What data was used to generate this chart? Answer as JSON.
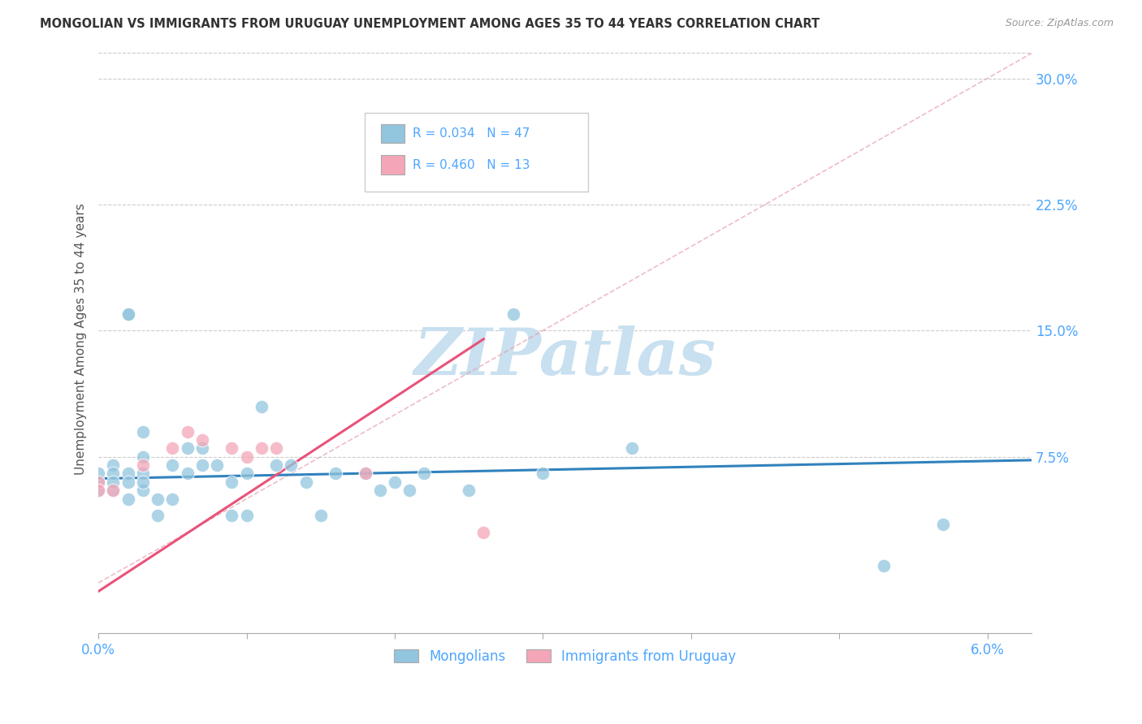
{
  "title": "MONGOLIAN VS IMMIGRANTS FROM URUGUAY UNEMPLOYMENT AMONG AGES 35 TO 44 YEARS CORRELATION CHART",
  "source": "Source: ZipAtlas.com",
  "ylabel": "Unemployment Among Ages 35 to 44 years",
  "xlim": [
    0.0,
    0.063
  ],
  "ylim": [
    -0.03,
    0.32
  ],
  "yticks": [
    0.075,
    0.15,
    0.225,
    0.3
  ],
  "xticks": [
    0.0,
    0.01,
    0.02,
    0.03,
    0.04,
    0.05,
    0.06
  ],
  "xtick_labels": [
    "0.0%",
    "",
    "",
    "",
    "",
    "",
    "6.0%"
  ],
  "ytick_labels": [
    "7.5%",
    "15.0%",
    "22.5%",
    "30.0%"
  ],
  "legend_label_blue": "Mongolians",
  "legend_label_pink": "Immigrants from Uruguay",
  "blue_color": "#92c5de",
  "pink_color": "#f4a6b8",
  "blue_line_color": "#3182bd",
  "pink_line_color": "#e8537a",
  "dashed_line_color": "#e8a0b0",
  "title_color": "#333333",
  "axis_label_color": "#4da6ff",
  "axis_tick_color": "#4da6ff",
  "watermark_color": "#c8e0f0",
  "mongolians_x": [
    0.0,
    0.0,
    0.0,
    0.001,
    0.001,
    0.001,
    0.001,
    0.002,
    0.002,
    0.002,
    0.002,
    0.002,
    0.003,
    0.003,
    0.003,
    0.003,
    0.003,
    0.004,
    0.004,
    0.005,
    0.005,
    0.006,
    0.006,
    0.007,
    0.007,
    0.008,
    0.009,
    0.009,
    0.01,
    0.01,
    0.011,
    0.012,
    0.013,
    0.014,
    0.015,
    0.016,
    0.018,
    0.019,
    0.02,
    0.021,
    0.022,
    0.025,
    0.028,
    0.03,
    0.036,
    0.053,
    0.057
  ],
  "mongolians_y": [
    0.06,
    0.055,
    0.065,
    0.07,
    0.055,
    0.065,
    0.06,
    0.065,
    0.05,
    0.06,
    0.16,
    0.16,
    0.075,
    0.065,
    0.055,
    0.06,
    0.09,
    0.05,
    0.04,
    0.07,
    0.05,
    0.065,
    0.08,
    0.07,
    0.08,
    0.07,
    0.06,
    0.04,
    0.065,
    0.04,
    0.105,
    0.07,
    0.07,
    0.06,
    0.04,
    0.065,
    0.065,
    0.055,
    0.06,
    0.055,
    0.065,
    0.055,
    0.16,
    0.065,
    0.08,
    0.01,
    0.035
  ],
  "uruguay_x": [
    0.0,
    0.0,
    0.001,
    0.003,
    0.005,
    0.006,
    0.007,
    0.009,
    0.01,
    0.011,
    0.012,
    0.018,
    0.026
  ],
  "uruguay_y": [
    0.06,
    0.055,
    0.055,
    0.07,
    0.08,
    0.09,
    0.085,
    0.08,
    0.075,
    0.08,
    0.08,
    0.065,
    0.03
  ],
  "blue_trend_x": [
    0.0,
    0.063
  ],
  "blue_trend_y": [
    0.062,
    0.073
  ],
  "pink_trend_x": [
    0.0,
    0.026
  ],
  "pink_trend_y": [
    -0.005,
    0.145
  ],
  "dashed_trend_x": [
    0.0,
    0.063
  ],
  "dashed_trend_y": [
    0.0,
    0.315
  ]
}
